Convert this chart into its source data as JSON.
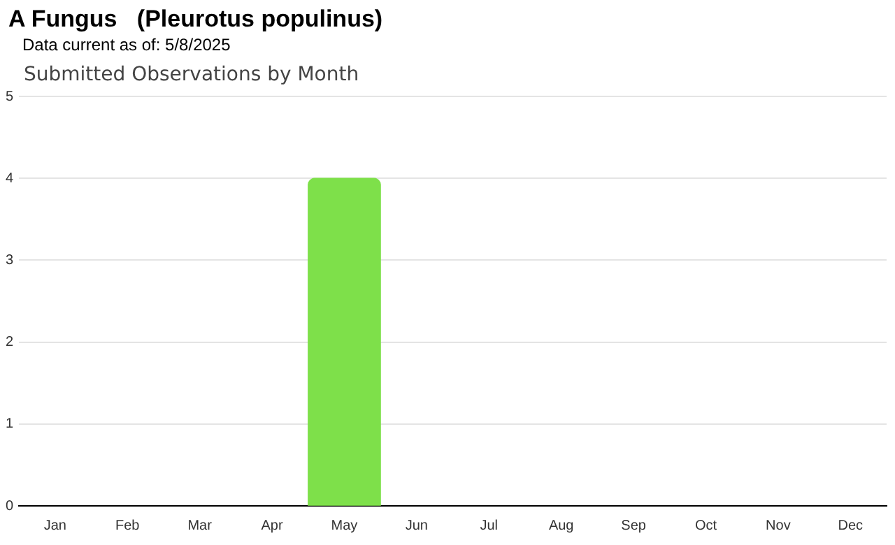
{
  "chart_data": {
    "type": "bar",
    "title": "A Fungus   (Pleurotus populinus)",
    "subtitle": "Data current as of: 5/8/2025",
    "annotations": [
      "Submitted Observations by Month"
    ],
    "categories": [
      "Jan",
      "Feb",
      "Mar",
      "Apr",
      "May",
      "Jun",
      "Jul",
      "Aug",
      "Sep",
      "Oct",
      "Nov",
      "Dec"
    ],
    "values": [
      0,
      0,
      0,
      0,
      4,
      0,
      0,
      0,
      0,
      0,
      0,
      0
    ],
    "color": "#7ee04a",
    "ylim": [
      0,
      5
    ],
    "yticks": [
      0,
      1,
      2,
      3,
      4,
      5
    ],
    "grid": "y",
    "legend": false
  }
}
